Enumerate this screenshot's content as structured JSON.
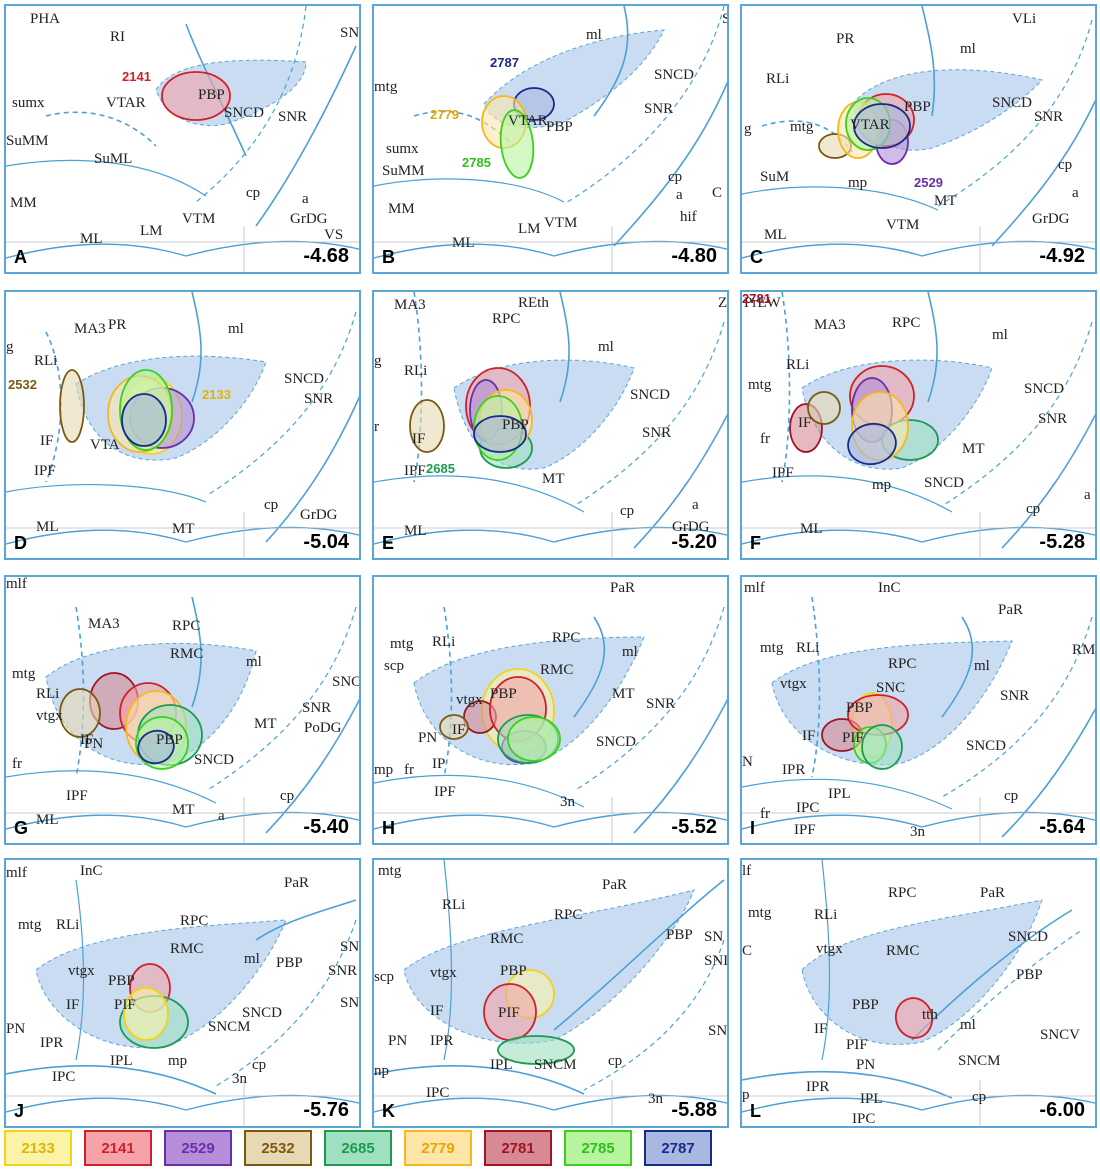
{
  "colors": {
    "2133": {
      "fill": "#fbf4a8",
      "stroke": "#f2d316",
      "text": "#e0b400"
    },
    "2141": {
      "fill": "#f4a4a8",
      "stroke": "#d0202a",
      "text": "#d0202a"
    },
    "2529": {
      "fill": "#b48ed8",
      "stroke": "#6a2fa8",
      "text": "#6a2fa8"
    },
    "2532": {
      "fill": "#e8d8b4",
      "stroke": "#7a5a10",
      "text": "#7a5a10"
    },
    "2685": {
      "fill": "#9ee0c0",
      "stroke": "#1e9a50",
      "text": "#1e9a50"
    },
    "2779": {
      "fill": "#fde6a8",
      "stroke": "#f4b820",
      "text": "#e8a400"
    },
    "2781": {
      "fill": "#d68a94",
      "stroke": "#a01424",
      "text": "#a01424"
    },
    "2785": {
      "fill": "#b8f4a0",
      "stroke": "#3ad020",
      "text": "#2cc218"
    },
    "2787": {
      "fill": "#a8b8e0",
      "stroke": "#1a2a8a",
      "text": "#1a2a8a"
    }
  },
  "legend": [
    "2133",
    "2141",
    "2529",
    "2532",
    "2685",
    "2779",
    "2781",
    "2785",
    "2787"
  ],
  "panels": [
    {
      "letter": "A",
      "coord": "-4.68",
      "labels": [
        "PHA",
        "RI",
        "SN",
        "sumx",
        "VTAR",
        "PBP",
        "SNCD",
        "SuMM",
        "SuML",
        "SNR",
        "MM",
        "ML",
        "LM",
        "VTM",
        "cp",
        "a",
        "GrDG",
        "VS"
      ],
      "specimens": [
        {
          "id": "2141",
          "label": true
        }
      ]
    },
    {
      "letter": "B",
      "coord": "-4.80",
      "labels": [
        "S",
        "ml",
        "mtg",
        "SNCD",
        "SNR",
        "VTAR",
        "PBP",
        "sumx",
        "SuMM",
        "MM",
        "ML",
        "LM",
        "VTM",
        "cp",
        "a",
        "C",
        "hif"
      ],
      "specimens": [
        {
          "id": "2787",
          "label": true
        },
        {
          "id": "2779",
          "label": true
        },
        {
          "id": "2785",
          "label": true
        }
      ]
    },
    {
      "letter": "C",
      "coord": "-4.92",
      "labels": [
        "VLi",
        "PR",
        "ml",
        "RLi",
        "SNCD",
        "SNR",
        "g",
        "mtg",
        "VTAR",
        "PBP",
        "SuM",
        "mp",
        "cp",
        "a",
        "MT",
        "ML",
        "VTM",
        "GrDG"
      ],
      "specimens": [
        {
          "id": "2532",
          "label": false
        },
        {
          "id": "2529",
          "label": true
        },
        {
          "id": "2141",
          "label": false
        },
        {
          "id": "2779",
          "label": false
        },
        {
          "id": "2785",
          "label": false
        },
        {
          "id": "2787",
          "label": false
        }
      ]
    },
    {
      "letter": "D",
      "coord": "-5.04",
      "labels": [
        "MA3",
        "PR",
        "ml",
        "g",
        "RLi",
        "SNCD",
        "SNR",
        "IF",
        "VTA",
        "IPF",
        "cp",
        "GrDG",
        "ML",
        "MT"
      ],
      "specimens": [
        {
          "id": "2532",
          "label": true
        },
        {
          "id": "2133",
          "label": true
        },
        {
          "id": "2529",
          "label": false
        },
        {
          "id": "2779",
          "label": false
        },
        {
          "id": "2785",
          "label": false
        },
        {
          "id": "2787",
          "label": false
        }
      ]
    },
    {
      "letter": "E",
      "coord": "-5.20",
      "labels": [
        "MA3",
        "REth",
        "Z",
        "RPC",
        "ml",
        "g",
        "RLi",
        "SNCD",
        "SNR",
        "r",
        "IF",
        "PBP",
        "IPF",
        "MT",
        "cp",
        "a",
        "GrDG",
        "ML"
      ],
      "specimens": [
        {
          "id": "2532",
          "label": false
        },
        {
          "id": "2685",
          "label": true
        },
        {
          "id": "2141",
          "label": false
        },
        {
          "id": "2529",
          "label": false
        },
        {
          "id": "2779",
          "label": false
        },
        {
          "id": "2785",
          "label": false
        },
        {
          "id": "2787",
          "label": false
        }
      ]
    },
    {
      "letter": "F",
      "coord": "-5.28",
      "labels": [
        "PrEW",
        "MA3",
        "RPC",
        "ml",
        "RLi",
        "SNCD",
        "mtg",
        "SNR",
        "fr",
        "IF",
        "MT",
        "IPF",
        "mp",
        "SNCD",
        "cp",
        "a",
        "ML"
      ],
      "specimens": [
        {
          "id": "2781",
          "label": true
        },
        {
          "id": "2532",
          "label": false
        },
        {
          "id": "2141",
          "label": false
        },
        {
          "id": "2529",
          "label": false
        },
        {
          "id": "2685",
          "label": false
        },
        {
          "id": "2779",
          "label": false
        },
        {
          "id": "2787",
          "label": false
        }
      ]
    },
    {
      "letter": "G",
      "coord": "-5.40",
      "labels": [
        "mlf",
        "MA3",
        "RPC",
        "RMC",
        "ml",
        "mtg",
        "RLi",
        "SNC",
        "vtgx",
        "SNR",
        "PoDG",
        "MT",
        "PN",
        "PBP",
        "fr",
        "IF",
        "SNCD",
        "IPF",
        "cp",
        "MT",
        "a",
        "ML"
      ],
      "specimens": [
        {
          "id": "2781",
          "label": false
        },
        {
          "id": "2532",
          "label": false
        },
        {
          "id": "2141",
          "label": false
        },
        {
          "id": "2779",
          "label": false
        },
        {
          "id": "2685",
          "label": false
        },
        {
          "id": "2785",
          "label": false
        },
        {
          "id": "2787",
          "label": false
        }
      ]
    },
    {
      "letter": "H",
      "coord": "-5.52",
      "labels": [
        "PaR",
        "mtg",
        "RLi",
        "RPC",
        "scp",
        "RMC",
        "ml",
        "MT",
        "vtgx",
        "SNR",
        "PBP",
        "PN",
        "IF",
        "SNCD",
        "mp",
        "fr",
        "IP",
        "IPF",
        "3n"
      ],
      "specimens": [
        {
          "id": "2133",
          "label": false
        },
        {
          "id": "2781",
          "label": false
        },
        {
          "id": "2532",
          "label": false
        },
        {
          "id": "2141",
          "label": false
        },
        {
          "id": "2529",
          "label": false
        },
        {
          "id": "2685",
          "label": false
        },
        {
          "id": "2785",
          "label": false
        }
      ]
    },
    {
      "letter": "I",
      "coord": "-5.64",
      "labels": [
        "mlf",
        "InC",
        "PaR",
        "mtg",
        "RLi",
        "RPC",
        "RMC",
        "SNC",
        "ml",
        "SNR",
        "vtgx",
        "PBP",
        "IF",
        "PIF",
        "SNCD",
        "N",
        "IPR",
        "IPL",
        "cp",
        "fr",
        "IPC",
        "IPF",
        "3n"
      ],
      "specimens": [
        {
          "id": "2133",
          "label": false
        },
        {
          "id": "2781",
          "label": false
        },
        {
          "id": "2141",
          "label": false
        },
        {
          "id": "2785",
          "label": false
        },
        {
          "id": "2685",
          "label": false
        }
      ]
    },
    {
      "letter": "J",
      "coord": "-5.76",
      "labels": [
        "mlf",
        "InC",
        "PaR",
        "mtg",
        "RLi",
        "RPC",
        "SN",
        "RMC",
        "ml",
        "PBP",
        "SNR",
        "PBP",
        "vtgx",
        "SNC",
        "IF",
        "PIF",
        "SNCD",
        "PN",
        "SNCM",
        "IPR",
        "IPL",
        "mp",
        "cp",
        "IPC",
        "3n"
      ],
      "specimens": [
        {
          "id": "2141",
          "label": false
        },
        {
          "id": "2685",
          "label": false
        },
        {
          "id": "2133",
          "label": false
        }
      ]
    },
    {
      "letter": "K",
      "coord": "-5.88",
      "labels": [
        "mtg",
        "PaR",
        "RLi",
        "RPC",
        "PBP",
        "SN",
        "RMC",
        "SNI",
        "scp",
        "vtgx",
        "PBP",
        "IF",
        "PIF",
        "SNCV",
        "PN",
        "IPR",
        "np",
        "IPL",
        "SNCM",
        "cp",
        "IPC",
        "3n"
      ],
      "specimens": [
        {
          "id": "2133",
          "label": false
        },
        {
          "id": "2141",
          "label": false
        },
        {
          "id": "2685",
          "label": false
        }
      ]
    },
    {
      "letter": "L",
      "coord": "-6.00",
      "labels": [
        "lf",
        "RPC",
        "PaR",
        "mtg",
        "RLi",
        "C",
        "vtgx",
        "RMC",
        "SNCD",
        "PBP",
        "PBP",
        "tth",
        "IF",
        "PIF",
        "ml",
        "SNCV",
        "PN",
        "SNCM",
        "IPR",
        "p",
        "IPL",
        "cp",
        "IPC"
      ],
      "specimens": [
        {
          "id": "2141",
          "label": false
        }
      ]
    }
  ]
}
